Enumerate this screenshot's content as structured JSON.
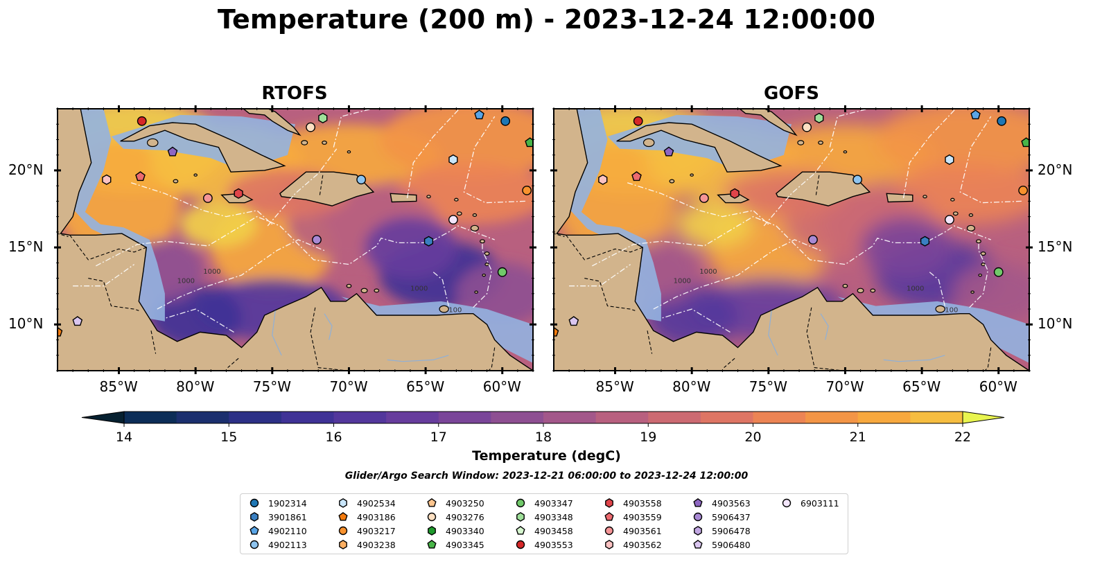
{
  "title": "Temperature (200 m) - 2023-12-24 12:00:00",
  "panels": [
    {
      "title": "RTOFS"
    },
    {
      "title": "GOFS"
    }
  ],
  "axes": {
    "lon_ticks": [
      "85°W",
      "80°W",
      "75°W",
      "70°W",
      "65°W",
      "60°W"
    ],
    "lat_ticks": [
      "20°N",
      "15°N",
      "10°N"
    ],
    "lon_range": [
      -89,
      -58
    ],
    "lat_range": [
      7,
      24
    ]
  },
  "colorbar": {
    "label": "Temperature (degC)",
    "ticks": [
      "14",
      "15",
      "16",
      "17",
      "18",
      "19",
      "20",
      "21",
      "22"
    ],
    "range": [
      14,
      22
    ],
    "colors": [
      "#05233a",
      "#0c2d57",
      "#1b2f6e",
      "#2c3086",
      "#3f3296",
      "#53379c",
      "#673d9d",
      "#7a4599",
      "#8e4f92",
      "#a3578a",
      "#b8607f",
      "#cc6a72",
      "#de7564",
      "#ec8454",
      "#f39546",
      "#f7a83e",
      "#f6bd40",
      "#f2d048",
      "#ebe454"
    ],
    "extend_min_color": "#062030",
    "extend_max_color": "#e9f54f"
  },
  "land_color": "#d2b48c",
  "ocean_shelf_color": "#93b3e0",
  "search_window": "Glider/Argo Search Window: 2023-12-21 06:00:00 to 2023-12-24 12:00:00",
  "legend": {
    "items": [
      {
        "label": "1902314",
        "marker": "circle",
        "color": "#1f77b4"
      },
      {
        "label": "3901861",
        "marker": "hexagon",
        "color": "#3a7fc1"
      },
      {
        "label": "4902110",
        "marker": "pentagon",
        "color": "#5aa5e6"
      },
      {
        "label": "4902113",
        "marker": "circle",
        "color": "#8ec4ef"
      },
      {
        "label": "4902534",
        "marker": "hexagon",
        "color": "#c9e6fb"
      },
      {
        "label": "4903186",
        "marker": "pentagon",
        "color": "#f47b0e"
      },
      {
        "label": "4903217",
        "marker": "circle",
        "color": "#f8922e"
      },
      {
        "label": "4903238",
        "marker": "hexagon",
        "color": "#fdaf62"
      },
      {
        "label": "4903250",
        "marker": "pentagon",
        "color": "#fcc58e"
      },
      {
        "label": "4903276",
        "marker": "circle",
        "color": "#fde0c2"
      },
      {
        "label": "4903340",
        "marker": "hexagon",
        "color": "#1e9a2c"
      },
      {
        "label": "4903345",
        "marker": "pentagon",
        "color": "#48b548"
      },
      {
        "label": "4903347",
        "marker": "circle",
        "color": "#71c96a"
      },
      {
        "label": "4903348",
        "marker": "hexagon",
        "color": "#9fe09a"
      },
      {
        "label": "4903458",
        "marker": "pentagon",
        "color": "#d6f6cf"
      },
      {
        "label": "4903553",
        "marker": "circle",
        "color": "#d62728"
      },
      {
        "label": "4903558",
        "marker": "hexagon",
        "color": "#e0444a"
      },
      {
        "label": "4903559",
        "marker": "pentagon",
        "color": "#ec6a6f"
      },
      {
        "label": "4903561",
        "marker": "circle",
        "color": "#f59597"
      },
      {
        "label": "4903562",
        "marker": "hexagon",
        "color": "#fbc2c2"
      },
      {
        "label": "4903563",
        "marker": "pentagon",
        "color": "#8e67c2"
      },
      {
        "label": "5906437",
        "marker": "circle",
        "color": "#a889d4"
      },
      {
        "label": "5906478",
        "marker": "hexagon",
        "color": "#c2a7e3"
      },
      {
        "label": "5906480",
        "marker": "pentagon",
        "color": "#dac6f0"
      },
      {
        "label": "6903111",
        "marker": "circle",
        "color": "#f3e6fb"
      }
    ]
  },
  "floats": [
    {
      "id": "4903553",
      "lon": -83.5,
      "lat": 23.2
    },
    {
      "id": "4903348",
      "lon": -71.7,
      "lat": 23.4
    },
    {
      "id": "4903276",
      "lon": -72.5,
      "lat": 22.8
    },
    {
      "id": "4902110",
      "lon": -61.5,
      "lat": 23.6
    },
    {
      "id": "1902314",
      "lon": -59.8,
      "lat": 23.2
    },
    {
      "id": "4903345",
      "lon": -58.2,
      "lat": 21.8
    },
    {
      "id": "4903563",
      "lon": -81.5,
      "lat": 21.2
    },
    {
      "id": "4902534",
      "lon": -63.2,
      "lat": 20.7
    },
    {
      "id": "4903562",
      "lon": -85.8,
      "lat": 19.4
    },
    {
      "id": "4903559",
      "lon": -83.6,
      "lat": 19.6
    },
    {
      "id": "4902113",
      "lon": -69.2,
      "lat": 19.4
    },
    {
      "id": "4903217",
      "lon": -58.4,
      "lat": 18.7
    },
    {
      "id": "4903561",
      "lon": -79.2,
      "lat": 18.2
    },
    {
      "id": "4903558",
      "lon": -77.2,
      "lat": 18.5
    },
    {
      "id": "6903111",
      "lon": -63.2,
      "lat": 16.8
    },
    {
      "id": "5906437",
      "lon": -72.1,
      "lat": 15.5
    },
    {
      "id": "3901861",
      "lon": -64.8,
      "lat": 15.4
    },
    {
      "id": "4903347",
      "lon": -60.0,
      "lat": 13.4
    },
    {
      "id": "5906480",
      "lon": -87.7,
      "lat": 10.2
    },
    {
      "id": "4903186",
      "lon": -89.0,
      "lat": 9.5
    }
  ],
  "contour_labels": [
    "1000",
    "1000",
    "1000",
    "100"
  ]
}
